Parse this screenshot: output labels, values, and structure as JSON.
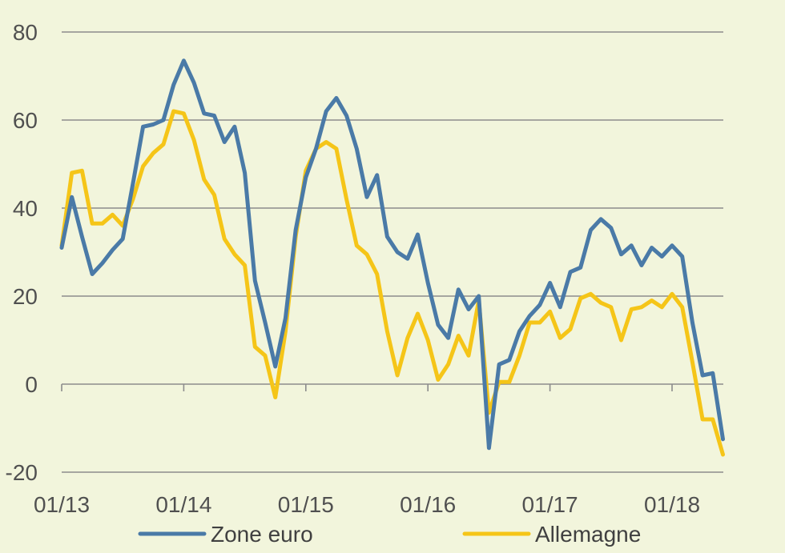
{
  "chart_data": {
    "type": "line",
    "title": "",
    "xlabel": "",
    "ylabel": "",
    "ylim": [
      -20,
      80
    ],
    "yticks": [
      -20,
      0,
      20,
      40,
      60,
      80
    ],
    "xticks": [
      "01/13",
      "01/14",
      "01/15",
      "01/16",
      "01/17",
      "01/18"
    ],
    "grid": true,
    "legend_position": "bottom",
    "x": [
      "01/13",
      "02/13",
      "03/13",
      "04/13",
      "05/13",
      "06/13",
      "07/13",
      "08/13",
      "09/13",
      "10/13",
      "11/13",
      "12/13",
      "01/14",
      "02/14",
      "03/14",
      "04/14",
      "05/14",
      "06/14",
      "07/14",
      "08/14",
      "09/14",
      "10/14",
      "11/14",
      "12/14",
      "01/15",
      "02/15",
      "03/15",
      "04/15",
      "05/15",
      "06/15",
      "07/15",
      "08/15",
      "09/15",
      "10/15",
      "11/15",
      "12/15",
      "01/16",
      "02/16",
      "03/16",
      "04/16",
      "05/16",
      "06/16",
      "07/16",
      "08/16",
      "09/16",
      "10/16",
      "11/16",
      "12/16",
      "01/17",
      "02/17",
      "03/17",
      "04/17",
      "05/17",
      "06/17",
      "07/17",
      "08/17",
      "09/17",
      "10/17",
      "11/17",
      "12/17",
      "01/18",
      "02/18",
      "03/18",
      "04/18",
      "05/18",
      "06/18"
    ],
    "series": [
      {
        "name": "Zone euro",
        "color": "#4a7aa7",
        "values": [
          31,
          42.5,
          33.5,
          25,
          27.5,
          30.5,
          33,
          45.5,
          58.5,
          59,
          60,
          68,
          73.5,
          68.5,
          61.5,
          61,
          55,
          58.5,
          48,
          23.5,
          14,
          4,
          15,
          35,
          47,
          53.5,
          62,
          65,
          61,
          53.5,
          42.5,
          47.5,
          33.5,
          30,
          28.5,
          34,
          23,
          13.5,
          10.5,
          21.5,
          17,
          20,
          -14.5,
          4.5,
          5.5,
          12,
          15.5,
          18,
          23,
          17.5,
          25.5,
          26.5,
          35,
          37.5,
          35.5,
          29.5,
          31.5,
          27,
          31,
          29,
          31.5,
          29,
          14,
          2,
          2.5,
          -12.5
        ]
      },
      {
        "name": "Allemagne",
        "color": "#f5c518",
        "values": [
          31.5,
          48,
          48.5,
          36.5,
          36.5,
          38.5,
          36,
          42,
          49.5,
          52.5,
          54.5,
          62,
          61.5,
          55.5,
          46.5,
          43,
          33,
          29.5,
          27,
          8.5,
          6.5,
          -3,
          12,
          33.5,
          48.5,
          53.5,
          55,
          53.5,
          42,
          31.5,
          29.5,
          25,
          12,
          2,
          10.5,
          16,
          10,
          1,
          4.5,
          11,
          6.5,
          19,
          -6.5,
          0.5,
          0.5,
          6.5,
          14,
          14,
          16.5,
          10.5,
          12.5,
          19.5,
          20.5,
          18.5,
          17.5,
          10,
          17,
          17.5,
          19,
          17.5,
          20.5,
          17.5,
          5,
          -8,
          -8,
          -16
        ]
      }
    ]
  }
}
